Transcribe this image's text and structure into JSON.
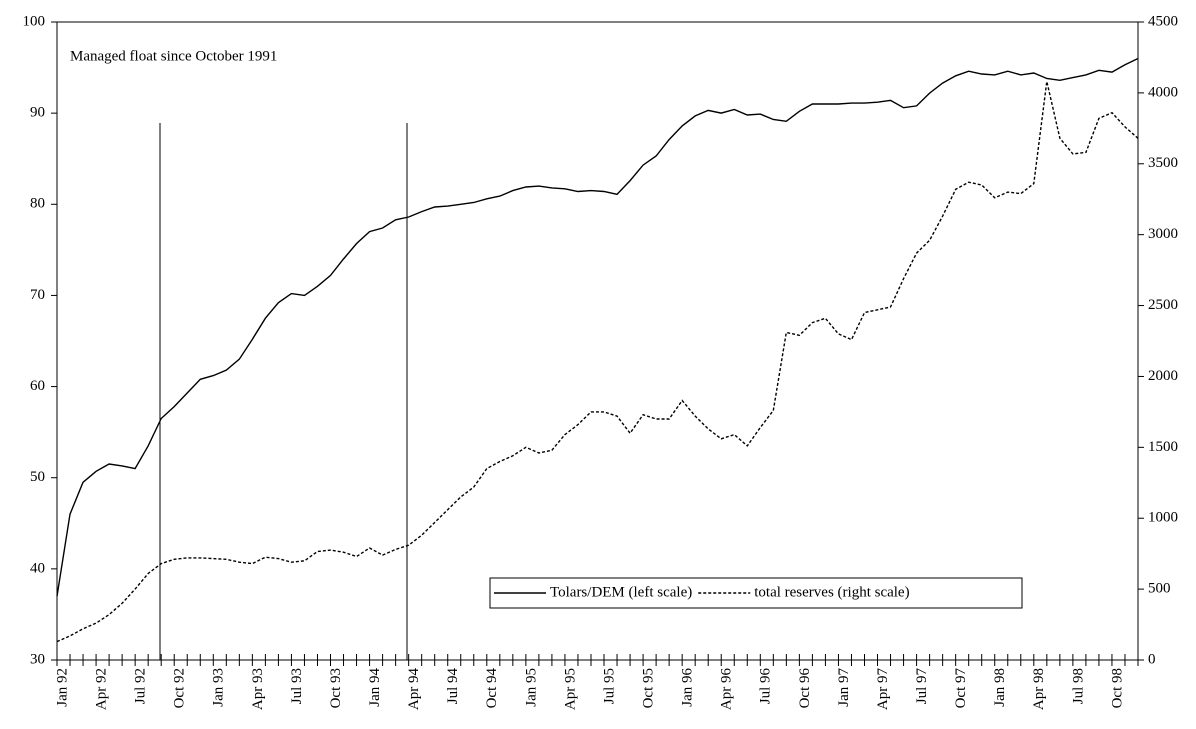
{
  "chart_data": {
    "type": "line",
    "annotation": "Managed float since October 1991",
    "categories": [
      "Jan 92",
      null,
      null,
      "Apr 92",
      null,
      null,
      "Jul 92",
      null,
      null,
      "Oct 92",
      null,
      null,
      "Jan 93",
      null,
      null,
      "Apr 93",
      null,
      null,
      "Jul 93",
      null,
      null,
      "Oct 93",
      null,
      null,
      "Jan 94",
      null,
      null,
      "Apr 94",
      null,
      null,
      "Jul 94",
      null,
      null,
      "Oct 94",
      null,
      null,
      "Jan 95",
      null,
      null,
      "Apr 95",
      null,
      null,
      "Jul 95",
      null,
      null,
      "Oct 95",
      null,
      null,
      "Jan 96",
      null,
      null,
      "Apr 96",
      null,
      null,
      "Jul 96",
      null,
      null,
      "Oct 96",
      null,
      null,
      "Jan 97",
      null,
      null,
      "Apr 97",
      null,
      null,
      "Jul 97",
      null,
      null,
      "Oct 97",
      null,
      null,
      "Jan 98",
      null,
      null,
      "Apr 98",
      null,
      null,
      "Jul 98",
      null,
      null,
      "Oct 98",
      null,
      null
    ],
    "series": [
      {
        "name": "Tolars/DEM (left scale)",
        "color": "#000000",
        "dash": false,
        "values": [
          37,
          46,
          49.5,
          50.7,
          51.5,
          51.3,
          51,
          53.5,
          56.5,
          57.8,
          59.3,
          60.8,
          61.2,
          61.8,
          63,
          65.2,
          67.5,
          69.2,
          70.2,
          70,
          71,
          72.2,
          74,
          75.7,
          77,
          77.4,
          78.3,
          78.6,
          79.2,
          79.7,
          79.8,
          80,
          80.2,
          80.6,
          80.9,
          81.5,
          81.9,
          82,
          81.8,
          81.7,
          81.4,
          81.5,
          81.4,
          81.1,
          82.6,
          84.3,
          85.3,
          87.1,
          88.6,
          89.7,
          90.3,
          90,
          90.4,
          89.8,
          89.9,
          89.3,
          89.1,
          90.2,
          91,
          91,
          91,
          91.1,
          91.1,
          91.2,
          91.4,
          90.6,
          90.8,
          92.2,
          93.3,
          94.1,
          94.6,
          94.3,
          94.2,
          94.6,
          94.2,
          94.4,
          93.8,
          93.6,
          93.9,
          94.2,
          94.7,
          94.5,
          95.3,
          96
        ]
      },
      {
        "name": "total reserves (right scale)",
        "color": "#000000",
        "dash": true,
        "axis": "y2",
        "values": [
          130,
          170,
          220,
          260,
          320,
          400,
          500,
          610,
          680,
          710,
          720,
          720,
          715,
          710,
          690,
          680,
          725,
          715,
          690,
          700,
          765,
          775,
          760,
          730,
          790,
          740,
          780,
          810,
          880,
          970,
          1060,
          1150,
          1220,
          1350,
          1400,
          1440,
          1500,
          1460,
          1480,
          1590,
          1660,
          1750,
          1750,
          1720,
          1600,
          1730,
          1700,
          1700,
          1830,
          1720,
          1630,
          1560,
          1590,
          1510,
          1640,
          1760,
          2310,
          2290,
          2380,
          2410,
          2300,
          2260,
          2450,
          2470,
          2490,
          2690,
          2870,
          2960,
          3130,
          3320,
          3370,
          3350,
          3260,
          3300,
          3290,
          3360,
          4080,
          3680,
          3570,
          3580,
          3820,
          3860,
          3760,
          3680
        ]
      }
    ],
    "ylim": [
      30,
      100
    ],
    "yticks": [
      30,
      40,
      50,
      60,
      70,
      80,
      90,
      100
    ],
    "y2lim": [
      0,
      4500
    ],
    "y2ticks": [
      0,
      500,
      1000,
      1500,
      2000,
      2500,
      3000,
      3500,
      4000,
      4500
    ],
    "grid": false,
    "legend": "lower right"
  }
}
